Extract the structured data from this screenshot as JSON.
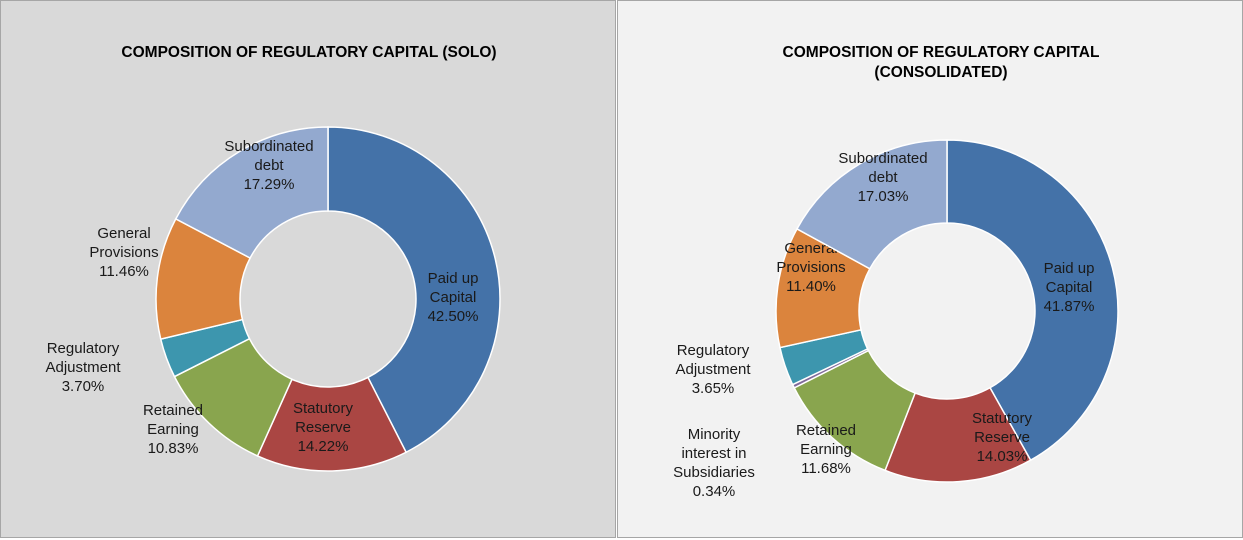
{
  "chart_data": [
    {
      "type": "donut",
      "title": "COMPOSITION OF REGULATORY CAPITAL (SOLO)",
      "categories": [
        [
          "Paid up",
          "Capital"
        ],
        [
          "Statutory",
          "Reserve"
        ],
        [
          "Retained",
          "Earning"
        ],
        [
          "Regulatory",
          "Adjustment"
        ],
        [
          "General",
          "Provisions"
        ],
        [
          "Subordinated",
          "debt"
        ]
      ],
      "values": [
        42.5,
        14.22,
        10.83,
        3.7,
        11.46,
        17.29
      ],
      "value_labels": [
        "42.50%",
        "14.22%",
        "10.83%",
        "3.70%",
        "11.46%",
        "17.29%"
      ],
      "colors": [
        "#4472a8",
        "#aa4643",
        "#89a54e",
        "#3d96ae",
        "#db843d",
        "#93a9cf"
      ]
    },
    {
      "type": "donut",
      "title": "COMPOSITION OF REGULATORY CAPITAL (CONSOLIDATED)",
      "categories": [
        [
          "Paid up",
          "Capital"
        ],
        [
          "Statutory",
          "Reserve"
        ],
        [
          "Retained",
          "Earning"
        ],
        [
          "Minority",
          "interest in",
          "Subsidiaries"
        ],
        [
          "Regulatory",
          "Adjustment"
        ],
        [
          "General",
          "Provisions"
        ],
        [
          "Subordinated",
          "debt"
        ]
      ],
      "values": [
        41.87,
        14.03,
        11.68,
        0.34,
        3.65,
        11.4,
        17.03
      ],
      "value_labels": [
        "41.87%",
        "14.03%",
        "11.68%",
        "0.34%",
        "3.65%",
        "11.40%",
        "17.03%"
      ],
      "colors": [
        "#4472a8",
        "#aa4643",
        "#89a54e",
        "#80699b",
        "#3d96ae",
        "#db843d",
        "#93a9cf"
      ]
    }
  ]
}
